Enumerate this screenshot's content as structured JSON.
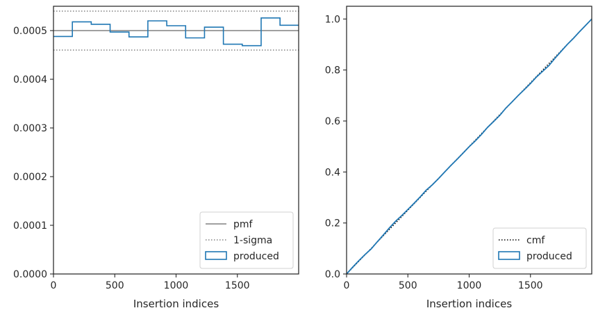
{
  "chart_data": [
    {
      "type": "line",
      "xlabel": "Insertion indices",
      "ylabel": "",
      "xlim": [
        0,
        2000
      ],
      "ylim": [
        0,
        0.00055
      ],
      "grid": false,
      "x_ticks": [
        0,
        500,
        1000,
        1500
      ],
      "x_tick_labels": [
        "0",
        "500",
        "1000",
        "1500"
      ],
      "y_ticks": [
        0,
        0.0001,
        0.0002,
        0.0003,
        0.0004,
        0.0005
      ],
      "y_tick_labels": [
        "0.0000",
        "0.0001",
        "0.0002",
        "0.0003",
        "0.0004",
        "0.0005"
      ],
      "legend_position": "lower-right",
      "series": [
        {
          "name": "pmf",
          "kind": "hline",
          "y": 0.0005,
          "color": "#808080"
        },
        {
          "name": "1-sigma",
          "kind": "hlines-dotted",
          "y": [
            0.00046,
            0.00054
          ],
          "color": "#808080"
        },
        {
          "name": "produced",
          "kind": "step-histogram",
          "color": "#1f77b4",
          "bin_edges": [
            0,
            154,
            308,
            462,
            616,
            770,
            924,
            1078,
            1232,
            1386,
            1540,
            1694,
            1848,
            2000
          ],
          "values": [
            0.000488,
            0.000518,
            0.000513,
            0.000497,
            0.000487,
            0.00052,
            0.00051,
            0.000485,
            0.000507,
            0.000472,
            0.000469,
            0.000526,
            0.000511
          ]
        }
      ]
    },
    {
      "type": "line",
      "xlabel": "Insertion indices",
      "ylabel": "",
      "xlim": [
        0,
        2000
      ],
      "ylim": [
        0,
        1.05
      ],
      "grid": false,
      "x_ticks": [
        0,
        500,
        1000,
        1500
      ],
      "x_tick_labels": [
        "0",
        "500",
        "1000",
        "1500"
      ],
      "y_ticks": [
        0,
        0.2,
        0.4,
        0.6,
        0.8,
        1.0
      ],
      "y_tick_labels": [
        "0.0",
        "0.2",
        "0.4",
        "0.6",
        "0.8",
        "1.0"
      ],
      "legend_position": "lower-right",
      "series": [
        {
          "name": "cmf",
          "kind": "dotted-line",
          "color": "#000000",
          "x": [
            0,
            2000
          ],
          "y": [
            0,
            1.0
          ]
        },
        {
          "name": "produced",
          "kind": "line",
          "color": "#1f77b4",
          "x": [
            0,
            50,
            100,
            150,
            200,
            250,
            300,
            350,
            400,
            450,
            500,
            550,
            600,
            650,
            700,
            750,
            800,
            850,
            900,
            950,
            1000,
            1050,
            1100,
            1150,
            1200,
            1250,
            1300,
            1350,
            1400,
            1450,
            1500,
            1550,
            1600,
            1650,
            1700,
            1750,
            1800,
            1850,
            1900,
            1950,
            2000
          ],
          "y": [
            0.0,
            0.027,
            0.052,
            0.076,
            0.098,
            0.126,
            0.153,
            0.181,
            0.207,
            0.229,
            0.253,
            0.277,
            0.302,
            0.329,
            0.35,
            0.374,
            0.4,
            0.425,
            0.449,
            0.474,
            0.499,
            0.522,
            0.547,
            0.575,
            0.598,
            0.622,
            0.651,
            0.675,
            0.7,
            0.723,
            0.747,
            0.773,
            0.795,
            0.817,
            0.846,
            0.873,
            0.9,
            0.924,
            0.95,
            0.975,
            1.0
          ]
        }
      ]
    }
  ]
}
